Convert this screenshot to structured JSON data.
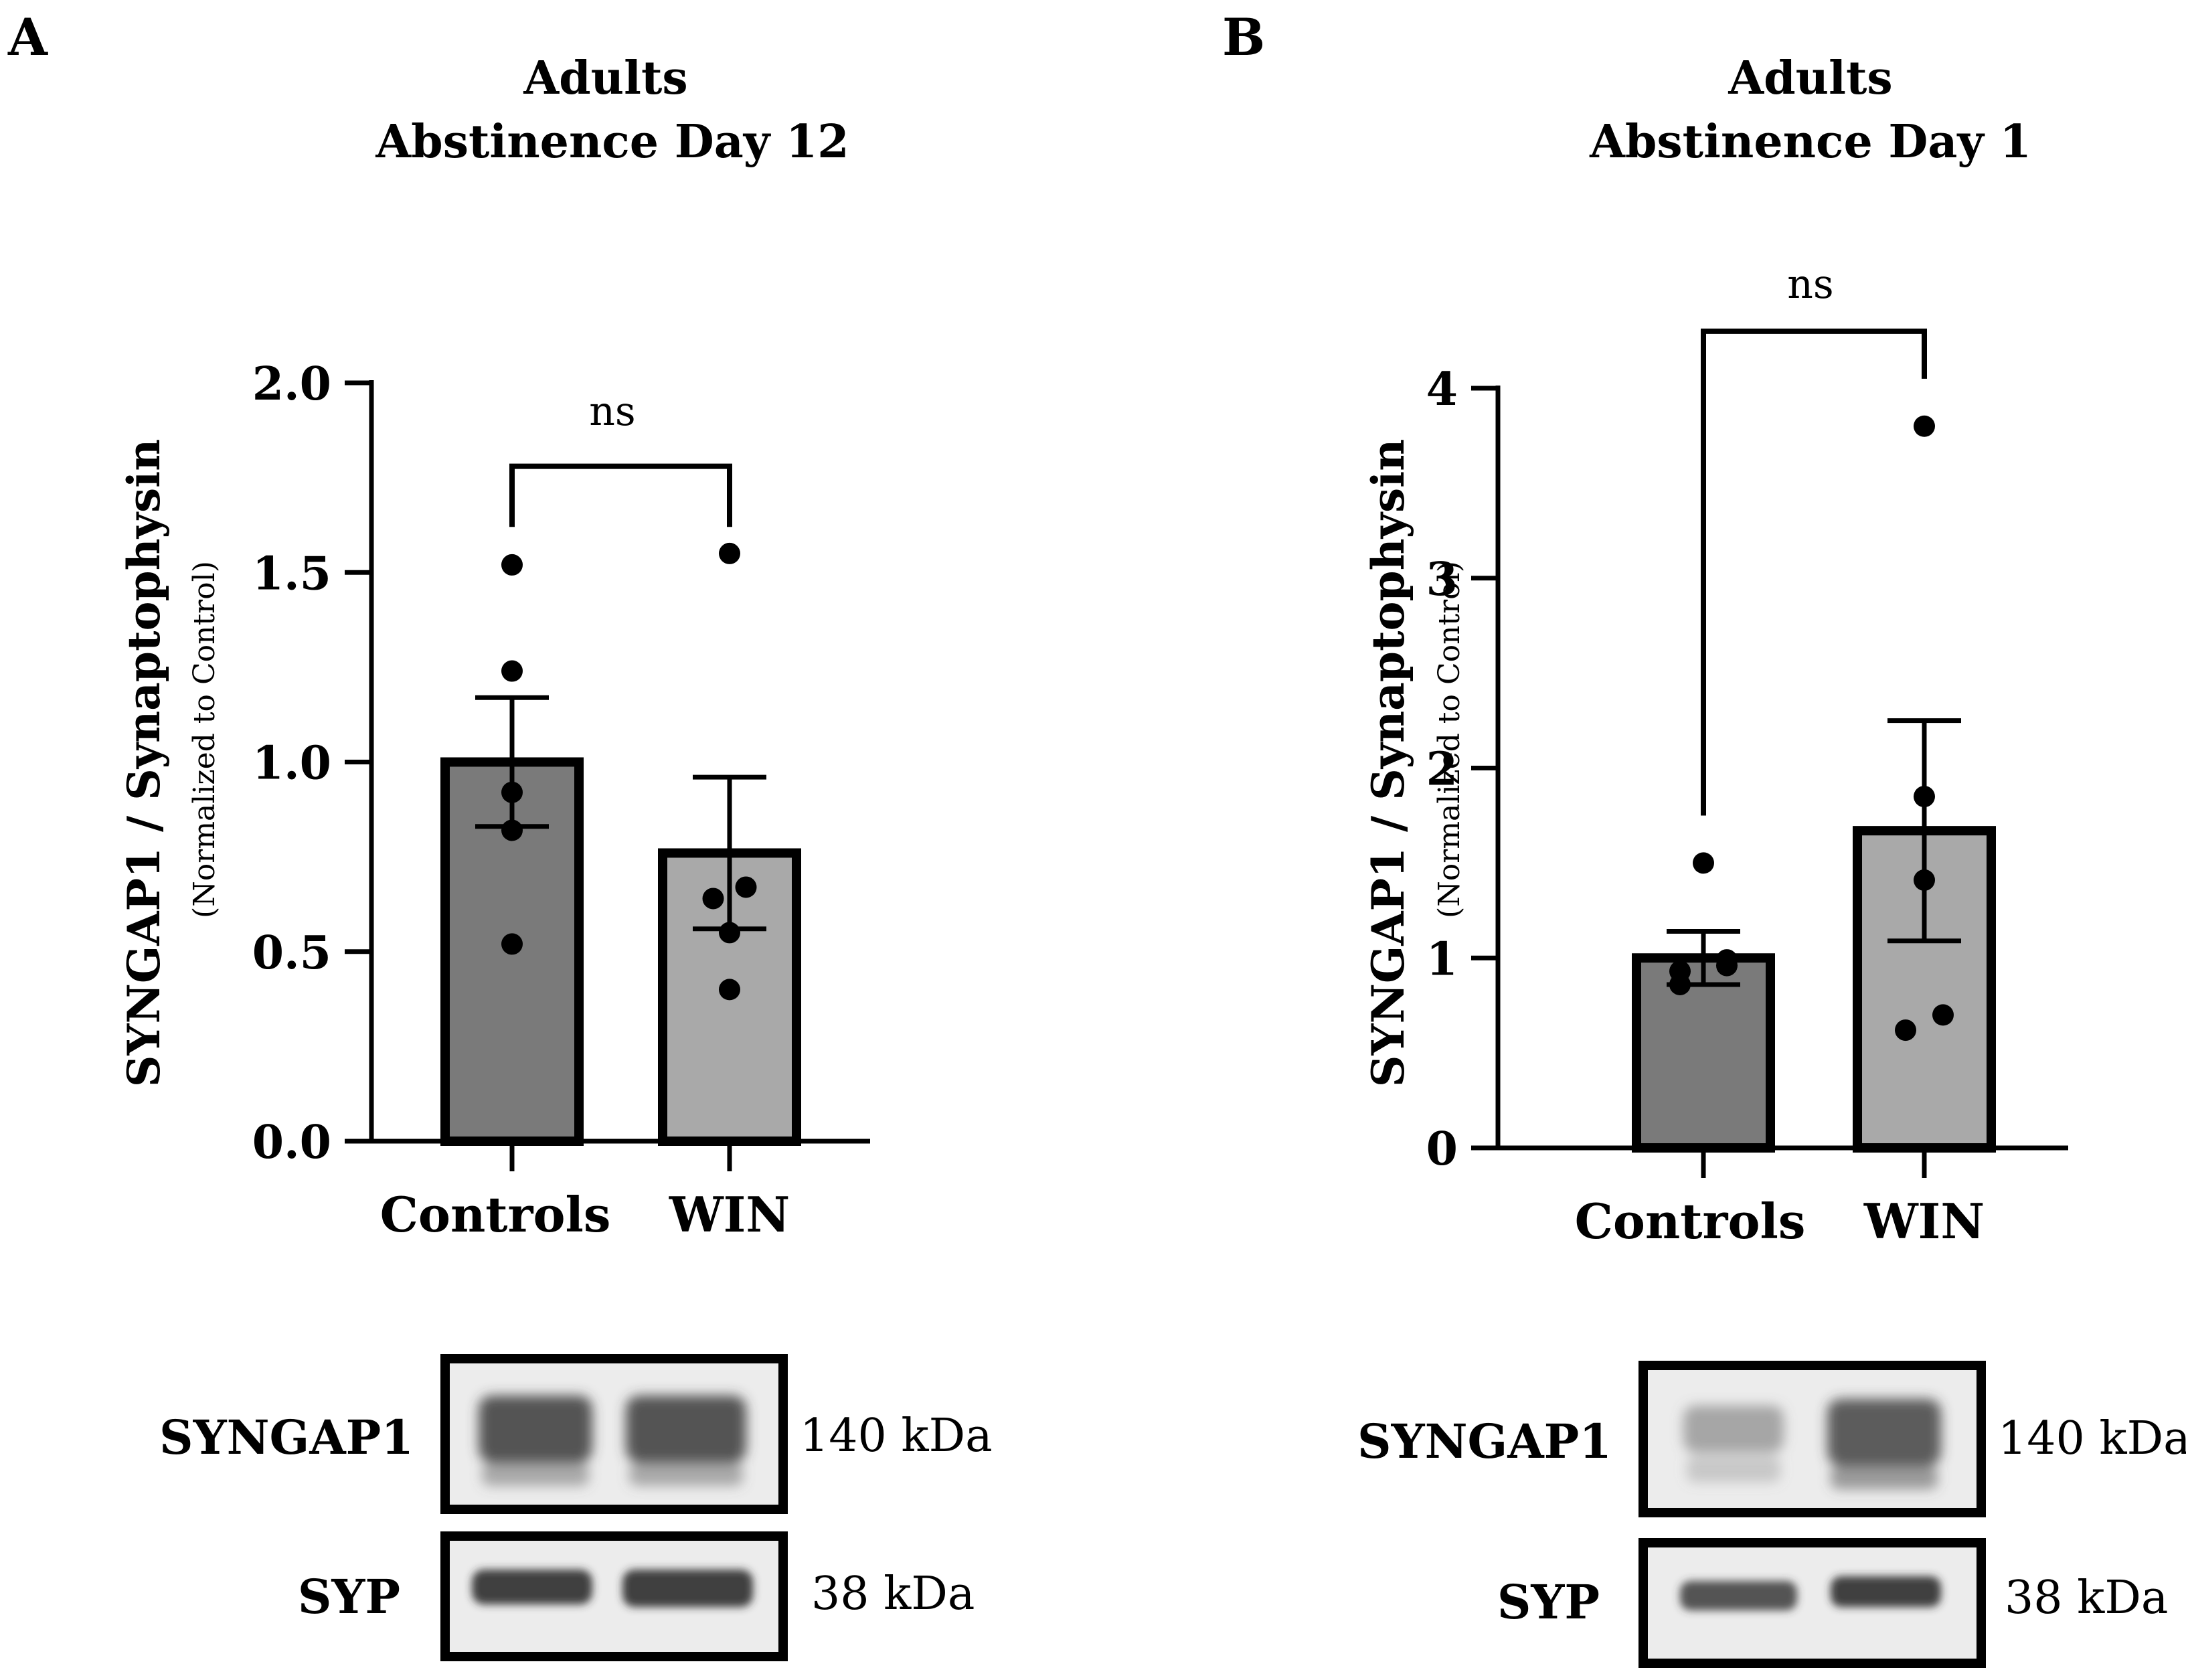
{
  "chart_data": [
    {
      "type": "bar",
      "panel_label": "A",
      "title_lines": [
        "Adults",
        "Abstinence Day 12"
      ],
      "ylabel": "SYNGAP1 / Synaptophysin",
      "ylabel_sub": "(Normalized to Control)",
      "categories": [
        "Controls",
        "WIN"
      ],
      "ylim": [
        0,
        2.0
      ],
      "yticks": [
        0.0,
        0.5,
        1.0,
        1.5,
        2.0
      ],
      "ytick_labels": [
        "0.0",
        "0.5",
        "1.0",
        "1.5",
        "2.0"
      ],
      "means": [
        1.0,
        0.76
      ],
      "sem": [
        0.17,
        0.2
      ],
      "points": [
        [
          1.52,
          1.24,
          0.92,
          0.82,
          0.52
        ],
        [
          1.55,
          0.67,
          0.64,
          0.55,
          0.4
        ]
      ],
      "point_offsets": [
        [
          0,
          0,
          0,
          0,
          0
        ],
        [
          0,
          0.35,
          -0.35,
          0,
          0
        ]
      ],
      "bar_colors": [
        "#7a7a7a",
        "#a9a9a9"
      ],
      "significance": "ns",
      "significance_y": 1.78,
      "blot": {
        "rows": [
          {
            "name": "SYNGAP1",
            "kda": "140 kDa"
          },
          {
            "name": "SYP",
            "kda": "38 kDa"
          }
        ]
      }
    },
    {
      "type": "bar",
      "panel_label": "B",
      "title_lines": [
        "Adults",
        "Abstinence Day 1"
      ],
      "ylabel": "SYNGAP1 / Synaptophysin",
      "ylabel_sub": "(Normalized to Control)",
      "categories": [
        "Controls",
        "WIN"
      ],
      "ylim": [
        0,
        4
      ],
      "yticks": [
        0,
        1,
        2,
        3,
        4
      ],
      "ytick_labels": [
        "0",
        "1",
        "2",
        "3",
        "4"
      ],
      "means": [
        1.0,
        1.67
      ],
      "sem": [
        0.14,
        0.58
      ],
      "points": [
        [
          1.5,
          0.99,
          0.93,
          0.96,
          0.86
        ],
        [
          3.8,
          1.85,
          1.41,
          0.7,
          0.62
        ]
      ],
      "point_offsets": [
        [
          0,
          0.5,
          -0.5,
          0.5,
          -0.5
        ],
        [
          0,
          0,
          0,
          0.4,
          -0.4
        ]
      ],
      "bar_colors": [
        "#7a7a7a",
        "#a9a9a9"
      ],
      "significance": "ns",
      "significance_y": 4.3,
      "blot": {
        "rows": [
          {
            "name": "SYNGAP1",
            "kda": "140 kDa"
          },
          {
            "name": "SYP",
            "kda": "38 kDa"
          }
        ]
      }
    }
  ]
}
